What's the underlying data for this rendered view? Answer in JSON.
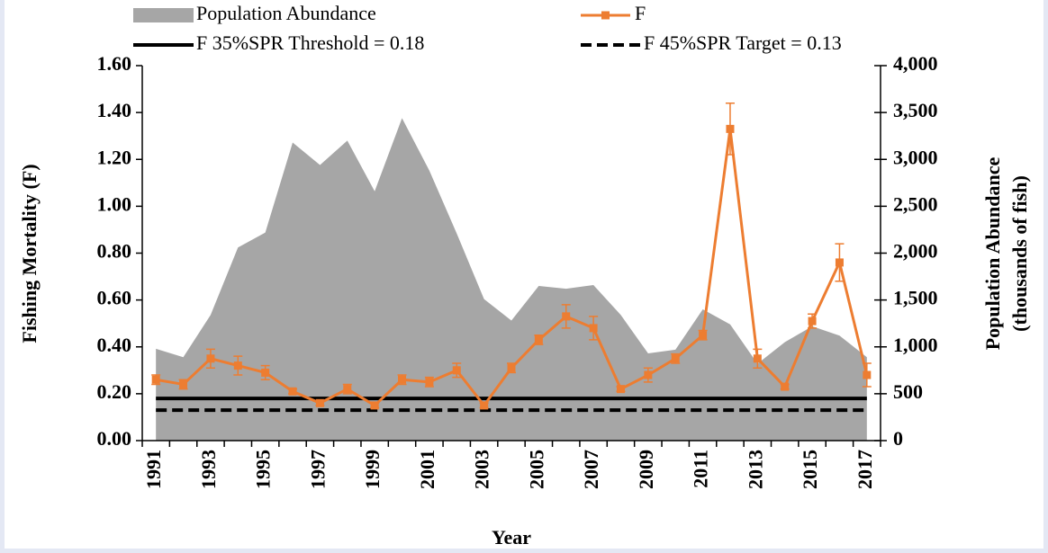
{
  "chart_data": {
    "type": "line",
    "categories": [
      "1991",
      null,
      "1993",
      null,
      "1995",
      null,
      "1997",
      null,
      "1999",
      null,
      "2001",
      null,
      "2003",
      null,
      "2005",
      null,
      "2007",
      null,
      "2009",
      null,
      "2011",
      null,
      "2013",
      null,
      "2015",
      null,
      "2017"
    ],
    "xlabel": "Year",
    "ylabel": "Fishing Mortality (F)",
    "y2label": [
      "Population Abundance",
      "(thousands of fish)"
    ],
    "ylim": [
      0,
      1.6
    ],
    "yticks": [
      {
        "value": 0,
        "label": "0.00"
      },
      {
        "value": 0.2,
        "label": "0.20"
      },
      {
        "value": 0.4,
        "label": "0.40"
      },
      {
        "value": 0.6,
        "label": "0.60"
      },
      {
        "value": 0.8,
        "label": "0.80"
      },
      {
        "value": 1.0,
        "label": "1.00"
      },
      {
        "value": 1.2,
        "label": "1.20"
      },
      {
        "value": 1.4,
        "label": "1.40"
      },
      {
        "value": 1.6,
        "label": "1.60"
      }
    ],
    "y2lim": [
      0,
      4000
    ],
    "y2ticks": [
      0,
      500,
      {
        "value": 1000,
        "label": "1,000"
      },
      {
        "value": 1500,
        "label": "1,500"
      },
      {
        "value": 2000,
        "label": "2,000"
      },
      {
        "value": 2500,
        "label": "2,500"
      },
      {
        "value": 3000,
        "label": "3,000"
      },
      {
        "value": 3500,
        "label": "3,500"
      },
      {
        "value": 4000,
        "label": "4,000"
      }
    ],
    "series": [
      {
        "name": "Population Abundance",
        "kind": "area",
        "axis": "y2",
        "color": "#a6a6a6",
        "values": [
          980,
          890,
          1340,
          2060,
          2220,
          3180,
          2940,
          3200,
          2660,
          3440,
          2880,
          2210,
          1510,
          1280,
          1650,
          1620,
          1660,
          1340,
          930,
          970,
          1400,
          1240,
          820,
          1050,
          1220,
          1120,
          890
        ]
      },
      {
        "name": "F",
        "kind": "line",
        "color": "#ed7d31",
        "values": [
          0.26,
          0.24,
          0.35,
          0.32,
          0.29,
          0.21,
          0.16,
          0.22,
          0.15,
          0.26,
          0.25,
          0.3,
          0.15,
          0.31,
          0.43,
          0.53,
          0.48,
          0.22,
          0.28,
          0.35,
          0.45,
          1.33,
          0.35,
          0.23,
          0.51,
          0.76,
          0.28
        ],
        "errors": [
          0.02,
          0.02,
          0.04,
          0.04,
          0.03,
          0.01,
          0.01,
          0.02,
          0.01,
          0.02,
          0.02,
          0.03,
          0.01,
          0.02,
          0.02,
          0.05,
          0.05,
          0.01,
          0.03,
          0.02,
          0.02,
          0.11,
          0.04,
          0.01,
          0.03,
          0.08,
          0.05
        ]
      },
      {
        "name": "F 35%SPR Threshold = 0.18",
        "kind": "hline",
        "color": "#000000",
        "value": 0.18
      },
      {
        "name": "F 45%SPR Target = 0.13",
        "kind": "hline",
        "dashed": true,
        "color": "#000000",
        "value": 0.13
      }
    ]
  }
}
